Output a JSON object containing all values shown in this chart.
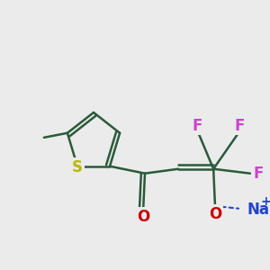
{
  "background_color": "#ebebeb",
  "bond_color": "#2a5a3a",
  "bond_width": 1.8,
  "atom_colors": {
    "S": "#b8b800",
    "O": "#cc0000",
    "F": "#cc44cc",
    "Na": "#2244cc",
    "C": "#2a5a3a"
  },
  "font_size_atom": 12,
  "figsize": [
    3.0,
    3.0
  ],
  "dpi": 100
}
